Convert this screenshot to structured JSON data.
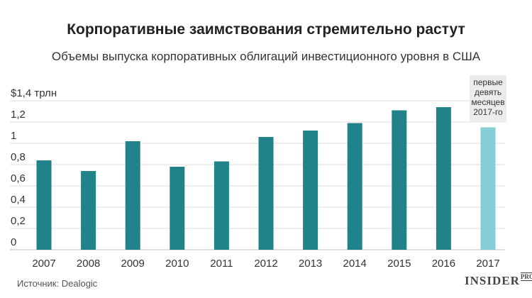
{
  "header": {
    "title": "Корпоративные заимствования стремительно растут",
    "subtitle": "Объемы выпуска корпоративных облигаций инвестиционного уровня в США"
  },
  "footer": {
    "source": "Источник: Dealogic",
    "brand": "INSIDER",
    "brand_suffix": "PRO"
  },
  "colors": {
    "bar": "#1f8389",
    "bar_highlight": "#86cdd6",
    "grid": "#dcdcdc",
    "note_bg": "#ececec"
  },
  "chart_data": {
    "type": "bar",
    "title": "Корпоративные заимствования стремительно растут",
    "subtitle": "Объемы выпуска корпоративных облигаций инвестиционного уровня в США",
    "categories": [
      "2007",
      "2008",
      "2009",
      "2010",
      "2011",
      "2012",
      "2013",
      "2014",
      "2015",
      "2016",
      "2017"
    ],
    "values": [
      0.84,
      0.74,
      1.02,
      0.78,
      0.83,
      1.06,
      1.12,
      1.19,
      1.31,
      1.34,
      1.15
    ],
    "highlight_index": 10,
    "ylim": [
      0,
      1.4
    ],
    "yticks": [
      0,
      0.2,
      0.4,
      0.6,
      0.8,
      1,
      1.2,
      1.4
    ],
    "ytick_labels": [
      "0",
      "0,2",
      "0,4",
      "0,6",
      "0,8",
      "1",
      "1,2",
      "$1,4 трлн"
    ],
    "grid": true,
    "legend": "none",
    "annotation": {
      "category": "2017",
      "lines": [
        "первые",
        "девять",
        "месяцев",
        "2017-го"
      ]
    }
  }
}
